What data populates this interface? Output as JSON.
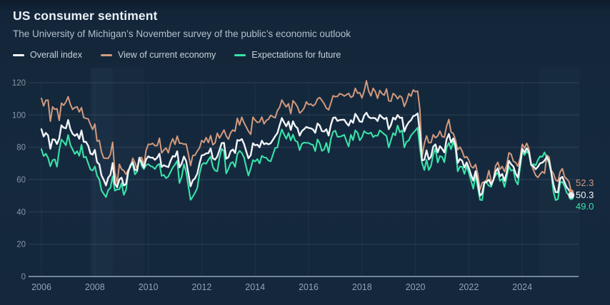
{
  "header": {
    "title": "US consumer sentiment",
    "subtitle": "The University of Michigan’s November survey of the public’s economic outlook"
  },
  "chart_data": {
    "type": "line",
    "title": "US consumer sentiment",
    "subtitle": "The University of Michigan’s November survey of the public’s economic outlook",
    "grid": "horizontal-major, faint-vertical",
    "legend_position": "top-left",
    "x_axis": {
      "label": "",
      "frequency": "monthly",
      "range": [
        2006,
        2025.92
      ],
      "ticks": [
        2006,
        2008,
        2010,
        2012,
        2014,
        2016,
        2018,
        2020,
        2022,
        2024
      ]
    },
    "y_axis": {
      "label": "",
      "min": 0,
      "max": 120,
      "ticks": [
        0,
        20,
        40,
        60,
        80,
        100,
        120
      ]
    },
    "series": [
      {
        "name": "Overall index",
        "color": "#f2f5f7",
        "end_label": "50.3",
        "values": [
          91.2,
          86.7,
          88.9,
          87.4,
          79.1,
          84.9,
          84.7,
          82.0,
          85.4,
          93.6,
          92.1,
          91.7,
          96.9,
          91.3,
          88.4,
          87.1,
          88.3,
          85.3,
          90.4,
          83.4,
          83.4,
          80.9,
          76.1,
          75.5,
          78.4,
          70.8,
          69.5,
          62.6,
          59.8,
          56.4,
          61.2,
          63.0,
          70.3,
          57.6,
          55.3,
          60.1,
          61.2,
          56.3,
          57.3,
          65.1,
          68.7,
          70.8,
          66.0,
          65.7,
          73.5,
          70.6,
          67.4,
          72.5,
          74.4,
          73.6,
          73.6,
          72.2,
          73.6,
          76.0,
          67.8,
          68.9,
          68.2,
          67.7,
          71.6,
          74.5,
          74.2,
          77.5,
          67.5,
          69.8,
          74.3,
          71.5,
          63.7,
          55.8,
          59.5,
          60.8,
          63.7,
          69.9,
          75.0,
          75.3,
          76.2,
          76.4,
          79.3,
          73.2,
          72.3,
          74.3,
          78.3,
          82.6,
          82.7,
          72.9,
          73.8,
          77.6,
          78.6,
          76.4,
          84.5,
          84.1,
          85.1,
          82.1,
          77.5,
          73.2,
          75.1,
          82.5,
          81.2,
          81.6,
          80.0,
          84.1,
          81.9,
          82.5,
          81.8,
          82.5,
          84.6,
          86.9,
          88.8,
          93.6,
          98.1,
          95.4,
          93.0,
          95.9,
          90.7,
          96.1,
          93.1,
          91.9,
          87.2,
          90.0,
          91.3,
          92.6,
          92.0,
          91.7,
          91.0,
          89.0,
          94.7,
          93.5,
          90.0,
          89.8,
          91.2,
          87.2,
          93.8,
          98.2,
          98.5,
          96.3,
          96.9,
          97.0,
          97.1,
          95.0,
          93.4,
          96.8,
          95.1,
          100.7,
          98.5,
          95.9,
          95.7,
          99.7,
          101.4,
          98.8,
          98.0,
          98.2,
          97.9,
          96.2,
          100.1,
          98.6,
          97.5,
          98.3,
          91.2,
          93.8,
          98.4,
          97.2,
          100.0,
          98.2,
          98.4,
          89.8,
          93.2,
          95.5,
          96.8,
          99.3,
          99.8,
          101.0,
          89.1,
          71.8,
          72.3,
          78.1,
          72.5,
          74.1,
          80.4,
          81.8,
          76.9,
          80.7,
          79.0,
          76.8,
          84.9,
          88.3,
          82.9,
          85.5,
          81.2,
          70.3,
          72.8,
          71.7,
          67.4,
          70.6,
          67.2,
          62.8,
          59.4,
          65.2,
          58.4,
          50.0,
          51.5,
          58.2,
          58.6,
          59.9,
          56.8,
          59.7,
          64.9,
          67.0,
          62.0,
          63.5,
          59.2,
          64.4,
          71.6,
          69.5,
          68.1,
          63.8,
          61.3,
          69.7,
          79.0,
          76.9,
          79.4,
          77.2,
          69.1,
          68.2,
          66.4,
          67.9,
          70.1,
          70.5,
          71.8,
          74.0,
          71.7,
          64.7,
          57.0,
          52.2,
          52.2,
          60.7,
          61.7,
          58.2,
          55.1,
          53.6,
          50.3
        ]
      },
      {
        "name": "View of current economy",
        "color": "#d29a7d",
        "end_label": "52.3",
        "values": [
          110.3,
          105.6,
          109.1,
          109.2,
          96.1,
          105.0,
          103.5,
          103.8,
          96.6,
          107.3,
          106.0,
          108.1,
          111.3,
          106.6,
          103.5,
          104.6,
          105.1,
          101.9,
          104.5,
          98.4,
          97.9,
          97.6,
          94.1,
          91.0,
          94.4,
          83.8,
          84.2,
          77.0,
          73.3,
          73.2,
          73.1,
          75.6,
          83.1,
          64.5,
          57.5,
          69.5,
          66.5,
          65.5,
          63.3,
          66.1,
          67.7,
          73.2,
          70.5,
          66.6,
          73.4,
          73.7,
          68.8,
          78.0,
          81.9,
          81.8,
          82.4,
          81.0,
          81.0,
          85.6,
          76.5,
          78.3,
          79.6,
          76.6,
          82.1,
          85.3,
          81.8,
          86.9,
          82.5,
          82.5,
          81.9,
          82.0,
          75.8,
          68.7,
          74.9,
          75.1,
          77.6,
          79.6,
          84.2,
          83.0,
          86.0,
          82.9,
          87.2,
          81.5,
          82.7,
          88.7,
          85.7,
          88.1,
          90.7,
          87.0,
          85.0,
          89.0,
          90.7,
          89.9,
          98.0,
          93.8,
          98.6,
          95.2,
          92.6,
          89.9,
          88.0,
          98.6,
          96.8,
          95.4,
          95.7,
          98.7,
          94.5,
          96.6,
          97.4,
          99.8,
          98.9,
          98.3,
          102.7,
          104.8,
          109.3,
          106.9,
          105.0,
          107.0,
          100.8,
          108.9,
          107.2,
          105.1,
          101.2,
          102.3,
          104.3,
          108.1,
          106.4,
          106.8,
          105.6,
          106.7,
          109.9,
          110.8,
          109.0,
          107.0,
          104.2,
          103.2,
          107.3,
          111.9,
          111.3,
          111.5,
          113.2,
          112.7,
          111.7,
          112.5,
          113.4,
          110.9,
          111.7,
          116.5,
          113.5,
          113.8,
          110.5,
          114.9,
          121.2,
          114.9,
          111.8,
          116.5,
          114.4,
          110.3,
          115.2,
          113.1,
          112.3,
          116.1,
          108.8,
          108.5,
          113.3,
          112.3,
          110.0,
          111.9,
          110.7,
          105.3,
          108.5,
          113.2,
          111.6,
          115.5,
          114.4,
          114.8,
          103.7,
          74.3,
          82.3,
          87.1,
          82.8,
          82.9,
          87.8,
          85.9,
          87.0,
          90.0,
          86.7,
          86.2,
          93.0,
          97.2,
          89.4,
          88.6,
          84.5,
          78.5,
          80.1,
          77.7,
          73.6,
          74.2,
          72.0,
          68.2,
          67.2,
          69.4,
          63.3,
          53.8,
          58.1,
          58.6,
          59.7,
          65.6,
          58.8,
          59.7,
          68.4,
          70.7,
          66.3,
          68.2,
          64.9,
          69.0,
          76.6,
          75.7,
          71.4,
          70.6,
          68.3,
          73.3,
          81.9,
          79.4,
          82.5,
          79.0,
          69.6,
          65.9,
          62.7,
          61.3,
          63.3,
          64.9,
          63.9,
          75.1,
          74.0,
          65.7,
          63.8,
          59.8,
          58.9,
          64.8,
          66.8,
          61.7,
          60.4,
          58.6,
          52.3
        ]
      },
      {
        "name": "Expectations for future",
        "color": "#38e3a9",
        "end_label": "49.0",
        "values": [
          78.9,
          74.5,
          76.0,
          73.4,
          68.2,
          72.0,
          72.5,
          68.0,
          78.2,
          84.8,
          83.2,
          81.2,
          87.6,
          81.5,
          78.7,
          75.9,
          77.6,
          74.7,
          81.5,
          73.7,
          74.1,
          70.1,
          66.2,
          65.6,
          68.1,
          62.4,
          60.1,
          53.3,
          51.1,
          49.2,
          53.5,
          54.9,
          62.0,
          53.1,
          53.9,
          54.0,
          57.8,
          50.5,
          53.5,
          64.4,
          69.4,
          69.2,
          63.2,
          65.0,
          73.5,
          68.6,
          66.5,
          68.9,
          69.6,
          68.4,
          67.9,
          66.5,
          68.8,
          69.8,
          62.3,
          62.9,
          60.9,
          61.9,
          64.8,
          67.5,
          69.3,
          71.6,
          57.9,
          61.6,
          69.5,
          64.8,
          56.0,
          47.4,
          49.4,
          51.8,
          54.8,
          63.6,
          69.1,
          70.3,
          69.8,
          72.3,
          74.3,
          67.8,
          65.6,
          65.1,
          73.5,
          79.0,
          77.6,
          63.8,
          66.6,
          70.2,
          70.8,
          67.8,
          75.8,
          77.8,
          76.5,
          73.7,
          67.8,
          62.5,
          66.8,
          72.1,
          71.2,
          72.7,
          70.0,
          74.7,
          73.7,
          73.5,
          71.8,
          71.3,
          75.4,
          79.6,
          79.9,
          86.4,
          91.0,
          88.0,
          85.3,
          88.8,
          84.2,
          87.8,
          84.1,
          83.4,
          78.2,
          82.1,
          82.9,
          82.7,
          82.7,
          81.9,
          81.5,
          77.6,
          84.9,
          82.4,
          77.8,
          78.7,
          82.7,
          76.8,
          85.2,
          89.5,
          90.3,
          86.5,
          86.5,
          87.0,
          87.7,
          83.9,
          80.5,
          87.7,
          84.4,
          90.5,
          88.9,
          84.3,
          86.3,
          90.0,
          88.8,
          88.4,
          89.1,
          86.3,
          87.3,
          87.1,
          90.5,
          89.3,
          88.1,
          87.0,
          79.9,
          84.4,
          88.8,
          87.4,
          93.5,
          89.3,
          90.5,
          79.9,
          83.4,
          84.2,
          87.3,
          88.9,
          90.5,
          92.1,
          79.7,
          70.1,
          65.9,
          72.3,
          65.9,
          68.5,
          75.6,
          79.2,
          70.5,
          74.6,
          74.0,
          70.7,
          79.7,
          82.7,
          78.8,
          83.5,
          79.0,
          65.1,
          68.1,
          67.9,
          63.5,
          68.3,
          64.1,
          59.4,
          54.3,
          62.5,
          55.2,
          47.5,
          47.3,
          58.0,
          58.0,
          56.2,
          55.6,
          59.9,
          62.7,
          64.5,
          59.2,
          60.5,
          55.4,
          61.5,
          68.3,
          65.5,
          66.0,
          59.3,
          56.9,
          67.4,
          77.1,
          75.2,
          77.4,
          76.0,
          68.8,
          69.6,
          68.8,
          72.1,
          74.4,
          74.1,
          76.9,
          73.3,
          70.3,
          64.0,
          52.6,
          47.3,
          47.9,
          58.1,
          58.6,
          55.9,
          51.8,
          50.3,
          49.0
        ]
      }
    ]
  }
}
